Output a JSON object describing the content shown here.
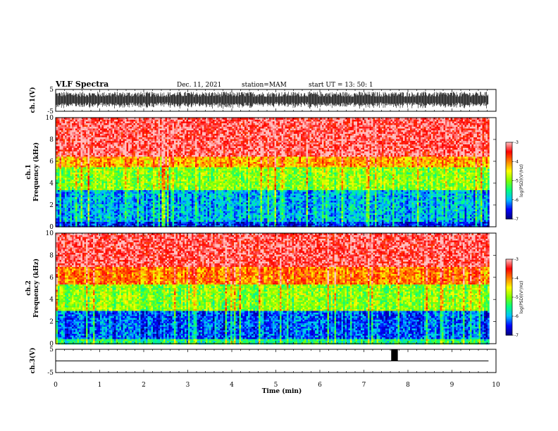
{
  "header": {
    "title": "VLF Spectra",
    "date": "Dec. 11, 2021",
    "station": "station=MAM",
    "start": "start  UT  =    13: 50: 1"
  },
  "colors": {
    "background": "#ffffff",
    "axes": "#000000",
    "colormap": [
      "#000080",
      "#0000ff",
      "#00c0ff",
      "#00ff80",
      "#80ff00",
      "#ffff00",
      "#ff8000",
      "#ff0000",
      "#ffc0c0"
    ]
  },
  "chart_data": [
    {
      "id": "ch1-waveform",
      "type": "line",
      "ylabel": "ch.1(V)",
      "ylim": [
        -5,
        5
      ],
      "yticks": [
        "5",
        "-5"
      ],
      "description_values": {
        "amplitude_range": [
          -4,
          4
        ]
      }
    },
    {
      "id": "ch1-spectrogram",
      "type": "heatmap",
      "ylabel": "ch.1\nFrequency (kHz)",
      "ylabel_top": "ch.1",
      "ylabel_main": "Frequency (kHz)",
      "ylim": [
        0,
        10
      ],
      "yticks": [
        "0",
        "2",
        "4",
        "6",
        "8",
        "10"
      ],
      "colorbar": {
        "label": "log(PSD)(V²/Hz)",
        "range": [
          -7,
          -3
        ],
        "ticks": [
          "-3",
          "-4",
          "-5",
          "-6",
          "-7"
        ]
      },
      "bands": [
        {
          "freq_khz": [
            0,
            0.6
          ],
          "log_psd": -6.5
        },
        {
          "freq_khz": [
            0.6,
            3.5
          ],
          "log_psd": -6.0
        },
        {
          "freq_khz": [
            3.5,
            5.5
          ],
          "log_psd": -5.0
        },
        {
          "freq_khz": [
            5.5,
            6.5
          ],
          "log_psd": -4.2
        },
        {
          "freq_khz": [
            6.5,
            10
          ],
          "log_psd": -3.3
        }
      ]
    },
    {
      "id": "ch2-spectrogram",
      "type": "heatmap",
      "ylabel_top": "ch.2",
      "ylabel_main": "Frequency (kHz)",
      "ylim": [
        0,
        10
      ],
      "yticks": [
        "0",
        "2",
        "4",
        "6",
        "8",
        "10"
      ],
      "colorbar": {
        "label": "log(PSD)(V²/Hz)",
        "range": [
          -7,
          -3
        ],
        "ticks": [
          "-3",
          "-4",
          "-5",
          "-6",
          "-7"
        ]
      },
      "bands": [
        {
          "freq_khz": [
            0,
            0.5
          ],
          "log_psd": -5.5
        },
        {
          "freq_khz": [
            0.5,
            3.0
          ],
          "log_psd": -6.3
        },
        {
          "freq_khz": [
            3.0,
            5.5
          ],
          "log_psd": -5.0
        },
        {
          "freq_khz": [
            5.5,
            7.0
          ],
          "log_psd": -4.0
        },
        {
          "freq_khz": [
            7.0,
            10
          ],
          "log_psd": -3.3
        }
      ]
    },
    {
      "id": "ch3-waveform",
      "type": "line",
      "ylabel": "ch.3(V)",
      "ylim": [
        -5,
        5
      ],
      "yticks": [
        "5",
        "-5"
      ],
      "pulse": {
        "t_min": [
          7.62,
          7.77
        ],
        "value": [
          0,
          5
        ]
      }
    }
  ],
  "xaxis": {
    "label": "Time  (min)",
    "range": [
      0,
      10
    ],
    "ticks": [
      "0",
      "1",
      "2",
      "3",
      "4",
      "5",
      "6",
      "7",
      "8",
      "9",
      "10"
    ],
    "data_end_min": 9.83
  }
}
